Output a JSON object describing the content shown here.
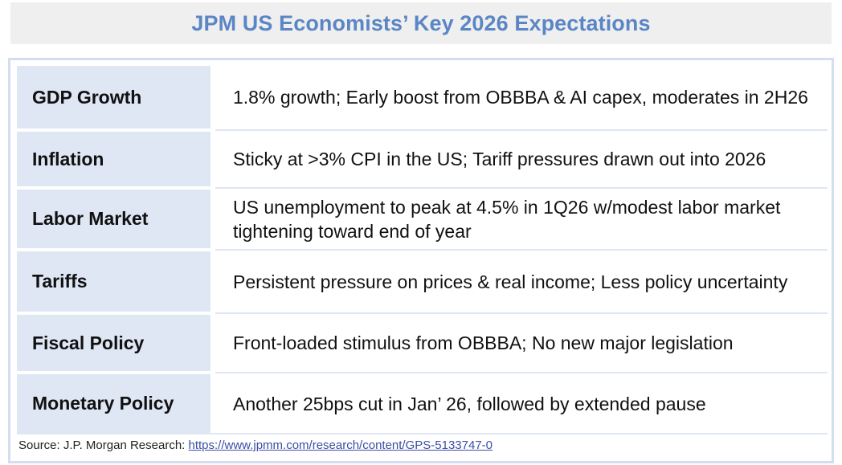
{
  "title": "JPM US Economists’ Key 2026 Expectations",
  "rows": [
    {
      "label": "GDP Growth",
      "value": "1.8% growth; Early boost from OBBBA & AI capex, moderates in 2H26"
    },
    {
      "label": "Inflation",
      "value": "Sticky at >3% CPI in the US; Tariff pressures drawn out into 2026"
    },
    {
      "label": "Labor Market",
      "value": "US unemployment to peak at 4.5% in 1Q26 w/modest labor market tightening toward end of year"
    },
    {
      "label": "Tariffs",
      "value": "Persistent pressure on prices & real income; Less policy uncertainty"
    },
    {
      "label": "Fiscal Policy",
      "value": "Front-loaded stimulus from OBBBA; No new major legislation"
    },
    {
      "label": "Monetary Policy",
      "value": "Another 25bps cut in Jan’ 26, followed by extended pause"
    }
  ],
  "source": {
    "prefix": "Source: J.P. Morgan Research: ",
    "link_text": "https://www.jpmm.com/research/content/GPS-5133747-0"
  },
  "colors": {
    "title": "#5b86c5",
    "label_bg": "#dfe6f4",
    "frame_border": "#d4deef"
  }
}
